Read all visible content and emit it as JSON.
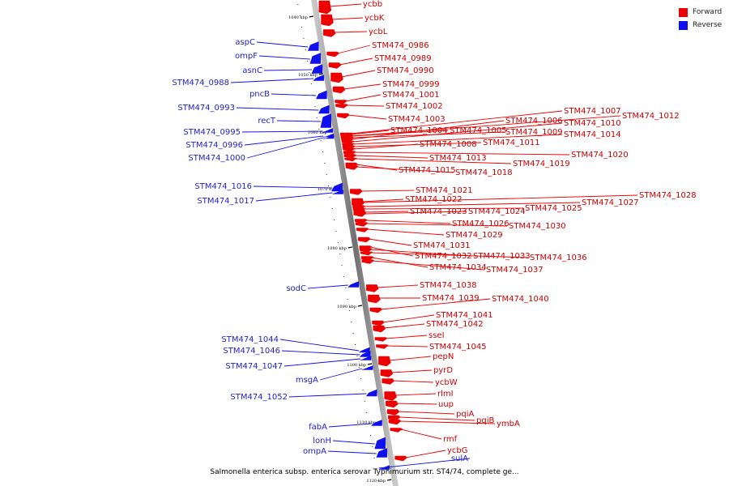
{
  "legend": {
    "forward_label": "Forward",
    "reverse_label": "Reverse",
    "forward_color": "#ee0000",
    "reverse_color": "#1010ee"
  },
  "caption": "Salmonella enterica subsp. enterica serovar Typhimurium str. ST4/74, complete ge...",
  "ticks": [
    "1040 kbp",
    "1050 kbp",
    "1060 kbp",
    "1070 kbp",
    "1080 kbp",
    "1090 kbp",
    "1100 kbp",
    "1110 kbp",
    "1120 kbp"
  ],
  "genes": [
    {
      "name": "ycbb",
      "strand": "forward"
    },
    {
      "name": "ycbK",
      "strand": "forward"
    },
    {
      "name": "ycbL",
      "strand": "forward"
    },
    {
      "name": "aspC",
      "strand": "reverse"
    },
    {
      "name": "STM474_0986",
      "strand": "forward"
    },
    {
      "name": "ompF",
      "strand": "reverse"
    },
    {
      "name": "STM474_0989",
      "strand": "forward"
    },
    {
      "name": "asnC",
      "strand": "reverse"
    },
    {
      "name": "STM474_0990",
      "strand": "forward"
    },
    {
      "name": "STM474_0988",
      "strand": "reverse"
    },
    {
      "name": "STM474_0999",
      "strand": "forward"
    },
    {
      "name": "pncB",
      "strand": "reverse"
    },
    {
      "name": "STM474_1001",
      "strand": "forward"
    },
    {
      "name": "STM474_1002",
      "strand": "forward"
    },
    {
      "name": "STM474_0993",
      "strand": "reverse"
    },
    {
      "name": "STM474_1007",
      "strand": "forward"
    },
    {
      "name": "STM474_1012",
      "strand": "forward"
    },
    {
      "name": "recT",
      "strand": "reverse"
    },
    {
      "name": "STM474_1003",
      "strand": "forward"
    },
    {
      "name": "STM474_1006",
      "strand": "forward"
    },
    {
      "name": "STM474_1010",
      "strand": "forward"
    },
    {
      "name": "STM474_0995",
      "strand": "reverse"
    },
    {
      "name": "STM474_1004",
      "strand": "forward"
    },
    {
      "name": "STM474_1005",
      "strand": "forward"
    },
    {
      "name": "STM474_1009",
      "strand": "forward"
    },
    {
      "name": "STM474_1014",
      "strand": "forward"
    },
    {
      "name": "STM474_0996",
      "strand": "reverse"
    },
    {
      "name": "STM474_1011",
      "strand": "forward"
    },
    {
      "name": "STM474_1008",
      "strand": "forward"
    },
    {
      "name": "STM474_1000",
      "strand": "reverse"
    },
    {
      "name": "STM474_1020",
      "strand": "forward"
    },
    {
      "name": "STM474_1013",
      "strand": "forward"
    },
    {
      "name": "STM474_1019",
      "strand": "forward"
    },
    {
      "name": "STM474_1015",
      "strand": "forward"
    },
    {
      "name": "STM474_1018",
      "strand": "forward"
    },
    {
      "name": "STM474_1016",
      "strand": "reverse"
    },
    {
      "name": "STM474_1021",
      "strand": "forward"
    },
    {
      "name": "STM474_1028",
      "strand": "forward"
    },
    {
      "name": "STM474_1022",
      "strand": "forward"
    },
    {
      "name": "STM474_1017",
      "strand": "reverse"
    },
    {
      "name": "STM474_1027",
      "strand": "forward"
    },
    {
      "name": "STM474_1025",
      "strand": "forward"
    },
    {
      "name": "STM474_1023",
      "strand": "forward"
    },
    {
      "name": "STM474_1024",
      "strand": "forward"
    },
    {
      "name": "STM474_1026",
      "strand": "forward"
    },
    {
      "name": "STM474_1030",
      "strand": "forward"
    },
    {
      "name": "STM474_1029",
      "strand": "forward"
    },
    {
      "name": "STM474_1031",
      "strand": "forward"
    },
    {
      "name": "STM474_1032",
      "strand": "forward"
    },
    {
      "name": "STM474_1033",
      "strand": "forward"
    },
    {
      "name": "STM474_1036",
      "strand": "forward"
    },
    {
      "name": "STM474_1034",
      "strand": "forward"
    },
    {
      "name": "STM474_1037",
      "strand": "forward"
    },
    {
      "name": "STM474_1038",
      "strand": "forward"
    },
    {
      "name": "sodC",
      "strand": "reverse"
    },
    {
      "name": "STM474_1039",
      "strand": "forward"
    },
    {
      "name": "STM474_1040",
      "strand": "forward"
    },
    {
      "name": "STM474_1041",
      "strand": "forward"
    },
    {
      "name": "STM474_1042",
      "strand": "forward"
    },
    {
      "name": "sseI",
      "strand": "forward"
    },
    {
      "name": "STM474_1044",
      "strand": "reverse"
    },
    {
      "name": "STM474_1045",
      "strand": "forward"
    },
    {
      "name": "STM474_1046",
      "strand": "reverse"
    },
    {
      "name": "pepN",
      "strand": "forward"
    },
    {
      "name": "STM474_1047",
      "strand": "reverse"
    },
    {
      "name": "pyrD",
      "strand": "forward"
    },
    {
      "name": "msgA",
      "strand": "reverse"
    },
    {
      "name": "ycbW",
      "strand": "forward"
    },
    {
      "name": "rlmI",
      "strand": "forward"
    },
    {
      "name": "STM474_1052",
      "strand": "reverse"
    },
    {
      "name": "uup",
      "strand": "forward"
    },
    {
      "name": "pqiA",
      "strand": "forward"
    },
    {
      "name": "pqiB",
      "strand": "forward"
    },
    {
      "name": "ymbA",
      "strand": "forward"
    },
    {
      "name": "fabA",
      "strand": "reverse"
    },
    {
      "name": "rmf",
      "strand": "forward"
    },
    {
      "name": "lonH",
      "strand": "reverse"
    },
    {
      "name": "ompA",
      "strand": "reverse"
    },
    {
      "name": "ycbG",
      "strand": "forward"
    },
    {
      "name": "sulA",
      "strand": "reverse"
    }
  ]
}
